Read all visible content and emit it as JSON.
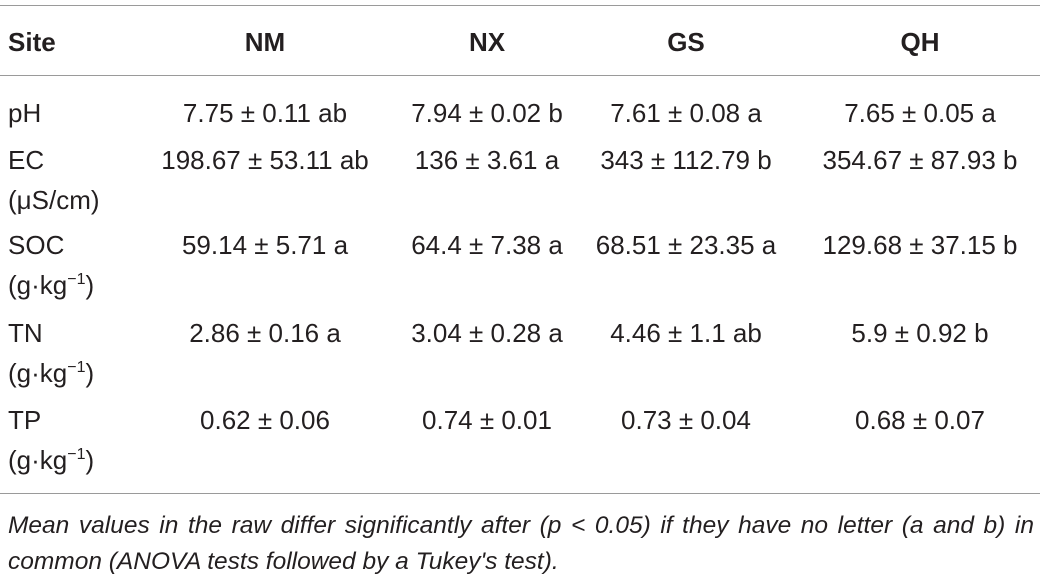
{
  "table": {
    "header": [
      "Site",
      "NM",
      "NX",
      "GS",
      "QH"
    ],
    "rows": [
      {
        "label": "pH",
        "cells": [
          "7.75 ± 0.11 ab",
          "7.94 ± 0.02 b",
          "7.61 ± 0.08 a",
          "7.65 ± 0.05 a"
        ]
      },
      {
        "label": "EC",
        "unit": "(μS/cm)",
        "cells": [
          "198.67 ± 53.11 ab",
          "136 ± 3.61 a",
          "343 ± 112.79 b",
          "354.67 ± 87.93 b"
        ]
      },
      {
        "label": "SOC",
        "unit": "(g·kg",
        "unit_sup": "−1",
        "unit_close": ")",
        "cells": [
          "59.14 ± 5.71 a",
          "64.4 ± 7.38 a",
          "68.51 ± 23.35 a",
          "129.68 ± 37.15 b"
        ]
      },
      {
        "label": "TN",
        "unit": "(g·kg",
        "unit_sup": "−1",
        "unit_close": ")",
        "cells": [
          "2.86 ± 0.16 a",
          "3.04 ± 0.28 a",
          "4.46 ± 1.1 ab",
          "5.9 ± 0.92 b"
        ]
      },
      {
        "label": "TP",
        "unit": "(g·kg",
        "unit_sup": "−1",
        "unit_close": ")",
        "cells": [
          "0.62 ± 0.06",
          "0.74 ± 0.01",
          "0.73 ± 0.04",
          "0.68 ± 0.07"
        ]
      }
    ],
    "footnote": "Mean values in the raw differ significantly after (p < 0.05) if they have no letter (a and b) in common (ANOVA tests followed by a Tukey's test)."
  }
}
